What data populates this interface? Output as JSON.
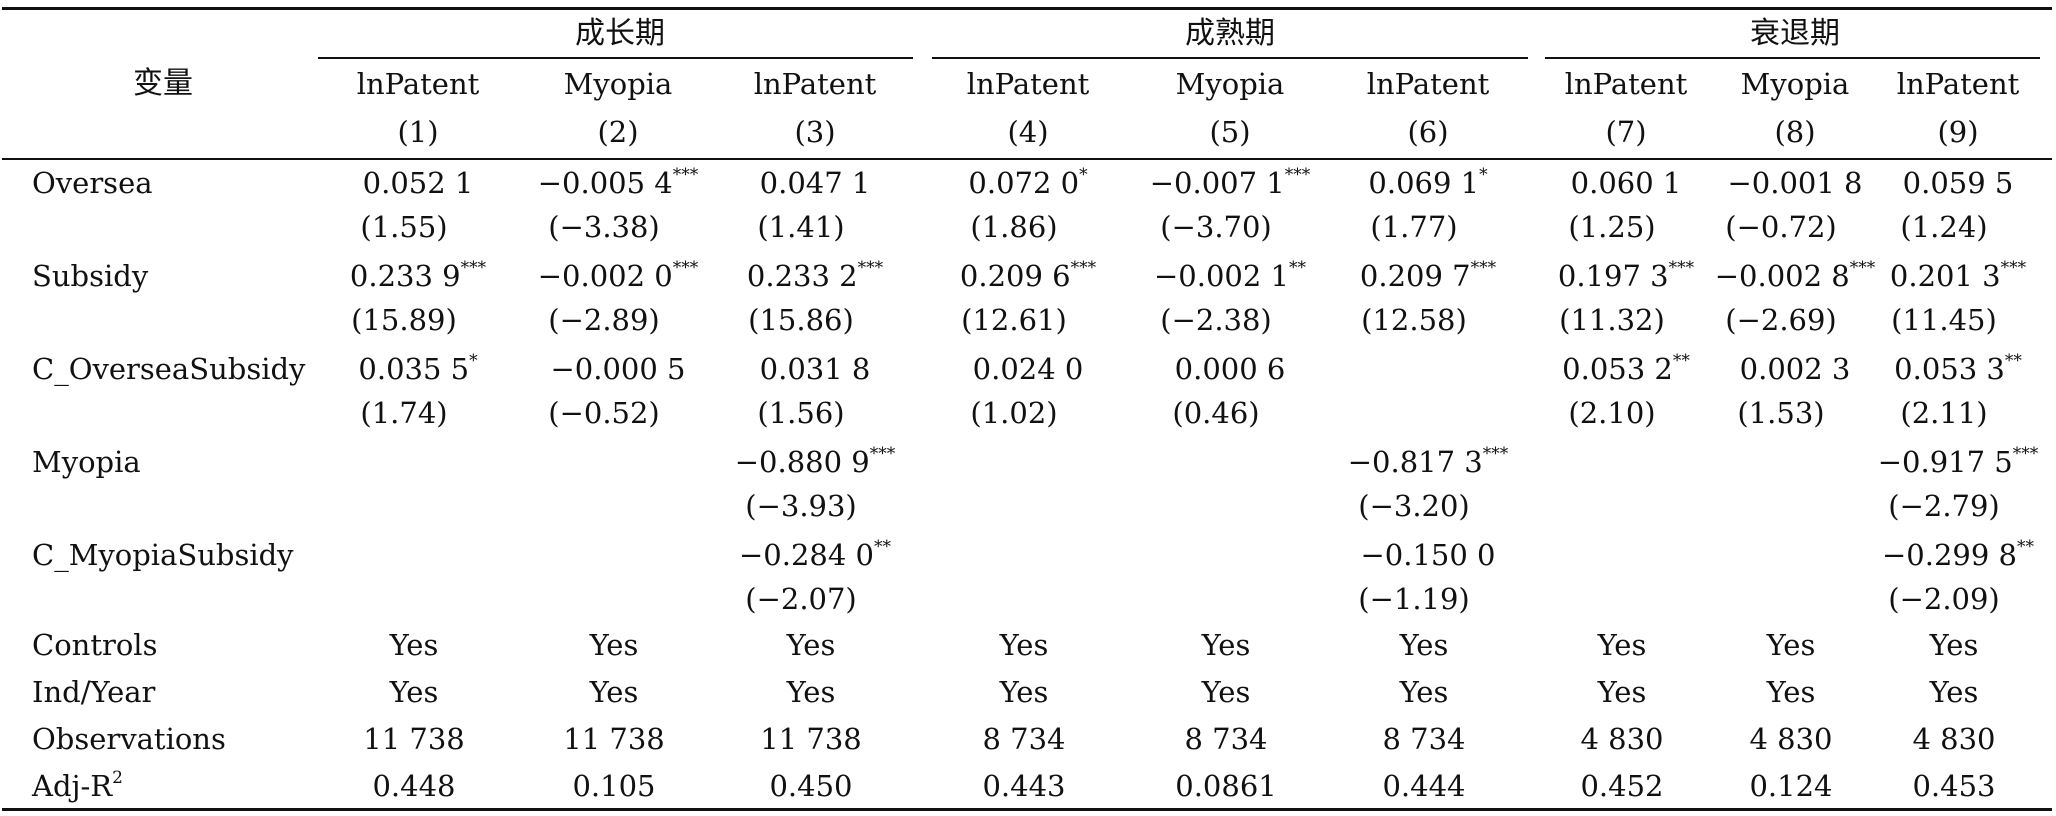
{
  "table": {
    "stub_header": "变量",
    "groups": [
      "成长期",
      "成熟期",
      "衰退期"
    ],
    "dep_vars": [
      "lnPatent",
      "Myopia",
      "lnPatent",
      "lnPatent",
      "Myopia",
      "lnPatent",
      "lnPatent",
      "Myopia",
      "lnPatent"
    ],
    "col_numbers": [
      "(1)",
      "(2)",
      "(3)",
      "(4)",
      "(5)",
      "(6)",
      "(7)",
      "(8)",
      "(9)"
    ],
    "rows": [
      {
        "label": "Oversea",
        "coef": [
          "0.052 1",
          "−0.005 4",
          "0.047 1",
          "0.072 0",
          "−0.007 1",
          "0.069 1",
          "0.060 1",
          "−0.001 8",
          "0.059 5"
        ],
        "stars": [
          "",
          "***",
          "",
          "*",
          "***",
          "*",
          "",
          "",
          ""
        ],
        "t": [
          "(1.55)",
          "(−3.38)",
          "(1.41)",
          "(1.86)",
          "(−3.70)",
          "(1.77)",
          "(1.25)",
          "(−0.72)",
          "(1.24)"
        ]
      },
      {
        "label": "Subsidy",
        "coef": [
          "0.233 9",
          "−0.002 0",
          "0.233 2",
          "0.209 6",
          "−0.002 1",
          "0.209 7",
          "0.197 3",
          "−0.002 8",
          "0.201 3"
        ],
        "stars": [
          "***",
          "***",
          "***",
          "***",
          "**",
          "***",
          "***",
          "***",
          "***"
        ],
        "t": [
          "(15.89)",
          "(−2.89)",
          "(15.86)",
          "(12.61)",
          "(−2.38)",
          "(12.58)",
          "(11.32)",
          "(−2.69)",
          "(11.45)"
        ]
      },
      {
        "label": "C_OverseaSubsidy",
        "coef": [
          "0.035 5",
          "−0.000 5",
          "0.031 8",
          "0.024 0",
          "0.000 6",
          "",
          "0.053 2",
          "0.002 3",
          "0.053 3"
        ],
        "stars": [
          "*",
          "",
          "",
          "",
          "",
          "",
          "**",
          "",
          "**"
        ],
        "t": [
          "(1.74)",
          "(−0.52)",
          "(1.56)",
          "(1.02)",
          "(0.46)",
          "",
          "(2.10)",
          "(1.53)",
          "(2.11)"
        ]
      },
      {
        "label": "Myopia",
        "coef": [
          "",
          "",
          "−0.880 9",
          "",
          "",
          "−0.817 3",
          "",
          "",
          "−0.917 5"
        ],
        "stars": [
          "",
          "",
          "***",
          "",
          "",
          "***",
          "",
          "",
          "***"
        ],
        "t": [
          "",
          "",
          "(−3.93)",
          "",
          "",
          "(−3.20)",
          "",
          "",
          "(−2.79)"
        ]
      },
      {
        "label": "C_MyopiaSubsidy",
        "coef": [
          "",
          "",
          "−0.284 0",
          "",
          "",
          "−0.150 0",
          "",
          "",
          "−0.299 8"
        ],
        "stars": [
          "",
          "",
          "**",
          "",
          "",
          "",
          "",
          "",
          "**"
        ],
        "t": [
          "",
          "",
          "(−2.07)",
          "",
          "",
          "(−1.19)",
          "",
          "",
          "(−2.09)"
        ]
      }
    ],
    "summary": [
      {
        "label": "Controls",
        "values": [
          "Yes",
          "Yes",
          "Yes",
          "Yes",
          "Yes",
          "Yes",
          "Yes",
          "Yes",
          "Yes"
        ]
      },
      {
        "label": "Ind/Year",
        "values": [
          "Yes",
          "Yes",
          "Yes",
          "Yes",
          "Yes",
          "Yes",
          "Yes",
          "Yes",
          "Yes"
        ]
      },
      {
        "label": "Observations",
        "values": [
          "11 738",
          "11 738",
          "11 738",
          "8 734",
          "8 734",
          "8 734",
          "4 830",
          "4 830",
          "4 830"
        ]
      }
    ],
    "adj_r2": {
      "label": "Adj-R",
      "sup": "2",
      "values": [
        "0.448",
        "0.105",
        "0.450",
        "0.443",
        "0.0861",
        "0.444",
        "0.452",
        "0.124",
        "0.453"
      ]
    }
  }
}
